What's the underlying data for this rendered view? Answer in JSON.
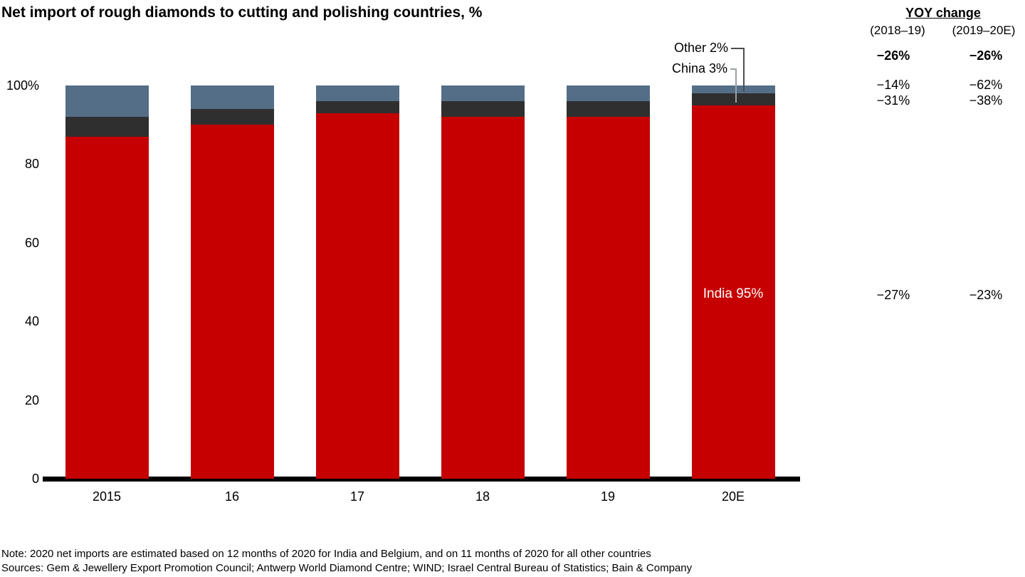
{
  "title": "Net import of rough diamonds to cutting and polishing countries, %",
  "chart_data": {
    "type": "bar",
    "stacked": true,
    "unit": "%",
    "title": "Net import of rough diamonds to cutting and polishing countries, %",
    "categories": [
      "2015",
      "16",
      "17",
      "18",
      "19",
      "20E"
    ],
    "series": [
      {
        "name": "India",
        "color": "#c60000",
        "values": [
          87,
          90,
          93,
          92,
          92,
          95
        ]
      },
      {
        "name": "China",
        "color": "#2f2f2f",
        "values": [
          5,
          4,
          3,
          4,
          4,
          3
        ]
      },
      {
        "name": "Other",
        "color": "#546e87",
        "values": [
          8,
          6,
          4,
          4,
          4,
          2
        ]
      }
    ],
    "ylim": [
      0,
      100
    ],
    "yticks": [
      {
        "label": "100%",
        "value": 100
      },
      {
        "label": "80",
        "value": 80
      },
      {
        "label": "60",
        "value": 60
      },
      {
        "label": "40",
        "value": 40
      },
      {
        "label": "20",
        "value": 20
      },
      {
        "label": "0",
        "value": 0
      }
    ],
    "grid": false,
    "legend": "inline-labels",
    "labels": {
      "other": "Other 2%",
      "china": "China 3%",
      "india": "India 95%"
    }
  },
  "yoy_table": {
    "header": "YOY change",
    "columns": [
      "(2018–19)",
      "(2019–20E)"
    ],
    "rows": [
      {
        "name": "total",
        "values": [
          "−26%",
          "−26%"
        ],
        "bold": true
      },
      {
        "name": "other",
        "values": [
          "−14%",
          "−62%"
        ],
        "bold": false
      },
      {
        "name": "china",
        "values": [
          "−31%",
          "−38%"
        ],
        "bold": false
      },
      {
        "name": "india",
        "values": [
          "−27%",
          "−23%"
        ],
        "bold": false
      }
    ]
  },
  "footer": {
    "note": "Note: 2020 net imports are estimated based on 12 months of 2020 for India and Belgium, and on 11 months of 2020 for all other countries",
    "sources": "Sources: Gem & Jewellery Export Promotion Council; Antwerp World Diamond Centre; WIND; Israel Central Bureau of Statistics; Bain & Company"
  }
}
